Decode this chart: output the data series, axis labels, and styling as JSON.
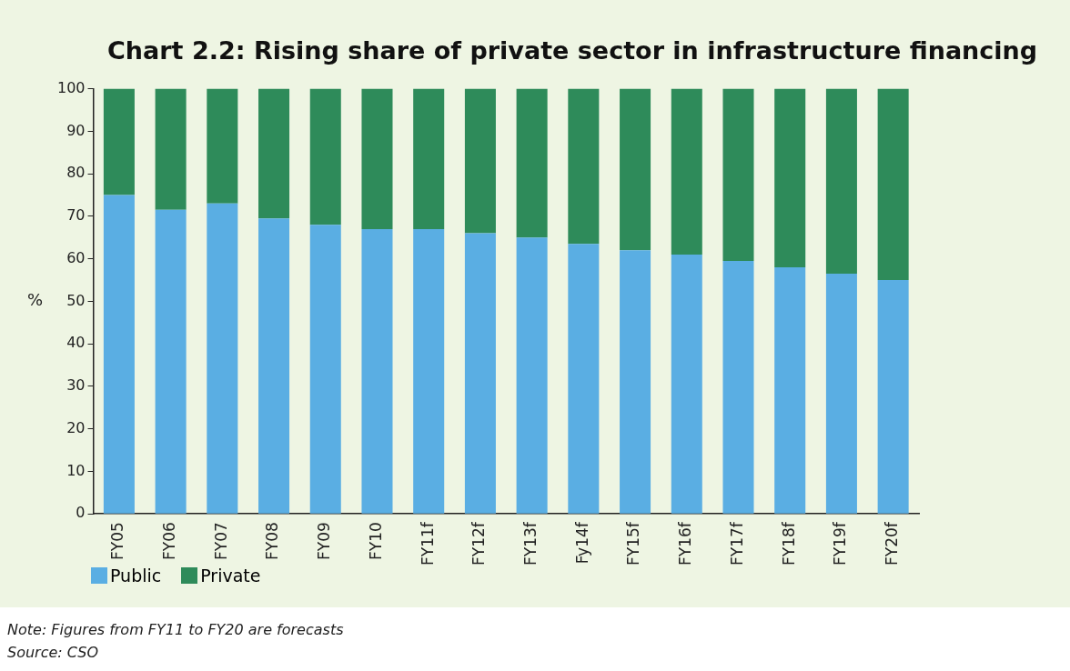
{
  "chart_data": {
    "type": "bar",
    "title": "Chart 2.2: Rising share of private sector in infrastructure financing",
    "categories": [
      "FY05",
      "FY06",
      "FY07",
      "FY08",
      "FY09",
      "FY10",
      "FY11f",
      "FY12f",
      "FY13f",
      "Fy14f",
      "FY15f",
      "FY16f",
      "FY17f",
      "FY18f",
      "FY19f",
      "FY20f"
    ],
    "series": [
      {
        "name": "Public",
        "color": "#5aaee3",
        "values": [
          75,
          71.5,
          73,
          69.5,
          68,
          67,
          67,
          66,
          65,
          63.5,
          62,
          61,
          59.5,
          58,
          56.5,
          55
        ]
      },
      {
        "name": "Private",
        "color": "#2e8b5a",
        "values": [
          25,
          28.5,
          27,
          30.5,
          32,
          33,
          33,
          34,
          35,
          36.5,
          38,
          39,
          40.5,
          42,
          43.5,
          45
        ]
      }
    ],
    "stacked": true,
    "ylabel": "%",
    "ylim": [
      0,
      100
    ],
    "yticks": [
      0,
      10,
      20,
      30,
      40,
      50,
      60,
      70,
      80,
      90,
      100
    ],
    "grid": false,
    "legend": "bottom left",
    "annotations": [
      "Note: Figures from FY11 to FY20 are forecasts",
      "Source: CSO"
    ]
  }
}
